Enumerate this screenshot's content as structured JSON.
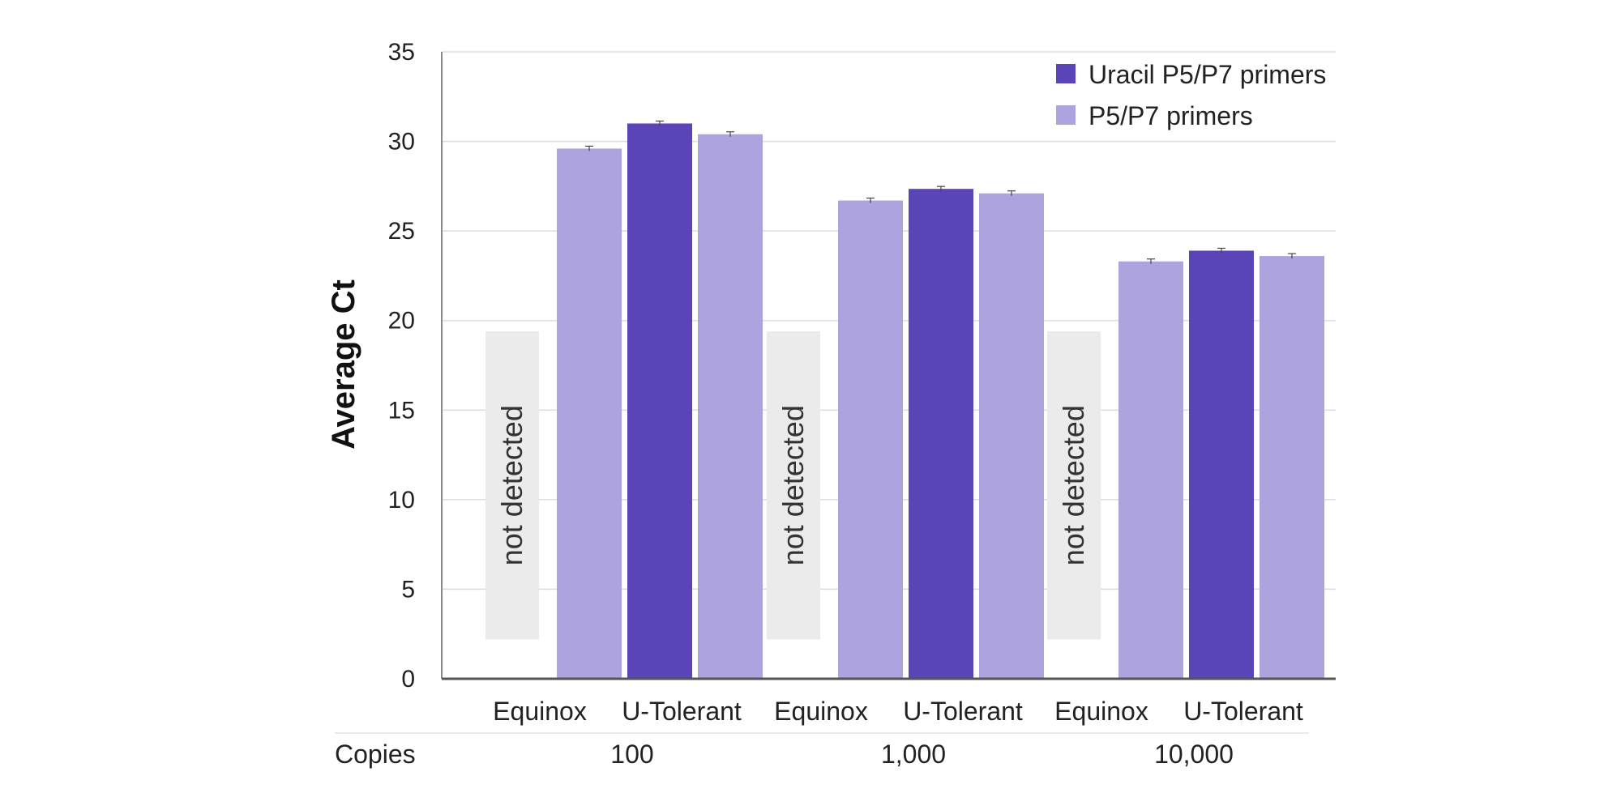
{
  "chart_data": {
    "type": "bar",
    "ylabel": "Average Ct",
    "ylim": [
      0,
      35
    ],
    "yticks": [
      "0",
      "5",
      "10",
      "15",
      "20",
      "25",
      "30",
      "35"
    ],
    "grid": true,
    "legend_position": "top-right",
    "legend": [
      {
        "name": "Uracil P5/P7 primers",
        "color": "#5b44b8"
      },
      {
        "name": "P5/P7 primers",
        "color": "#ada3de"
      }
    ],
    "row_label": "Copies",
    "not_detected_label": "not detected",
    "not_detected_color": "#ebebeb",
    "groups": [
      {
        "label": "100",
        "categories": [
          "Equinox",
          "U-Tolerant"
        ],
        "bars": [
          {
            "category": "Equinox",
            "series": "P5/P7 primers",
            "value": null,
            "not_detected": true
          },
          {
            "category": "Equinox",
            "series": "P5/P7 primers",
            "value": 29.6
          },
          {
            "category": "U-Tolerant",
            "series": "Uracil P5/P7 primers",
            "value": 31.0
          },
          {
            "category": "U-Tolerant",
            "series": "P5/P7 primers",
            "value": 30.4
          }
        ]
      },
      {
        "label": "1,000",
        "categories": [
          "Equinox",
          "U-Tolerant"
        ],
        "bars": [
          {
            "category": "Equinox",
            "series": "P5/P7 primers",
            "value": null,
            "not_detected": true
          },
          {
            "category": "Equinox",
            "series": "P5/P7 primers",
            "value": 26.7
          },
          {
            "category": "U-Tolerant",
            "series": "Uracil P5/P7 primers",
            "value": 27.35
          },
          {
            "category": "U-Tolerant",
            "series": "P5/P7 primers",
            "value": 27.1
          }
        ]
      },
      {
        "label": "10,000",
        "categories": [
          "Equinox",
          "U-Tolerant"
        ],
        "bars": [
          {
            "category": "Equinox",
            "series": "P5/P7 primers",
            "value": null,
            "not_detected": true
          },
          {
            "category": "Equinox",
            "series": "P5/P7 primers",
            "value": 23.3
          },
          {
            "category": "U-Tolerant",
            "series": "Uracil P5/P7 primers",
            "value": 23.9
          },
          {
            "category": "U-Tolerant",
            "series": "P5/P7 primers",
            "value": 23.6
          }
        ]
      }
    ]
  }
}
